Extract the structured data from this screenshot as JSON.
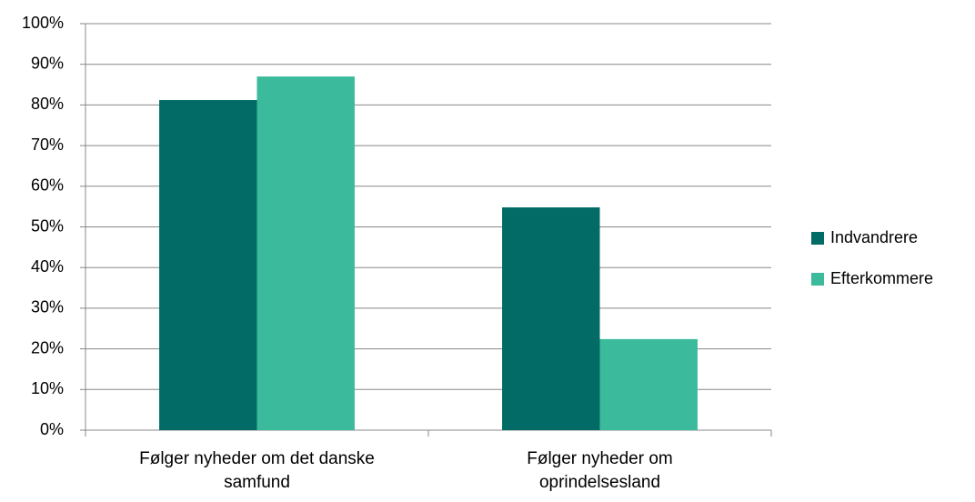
{
  "chart_data": {
    "type": "bar",
    "categories": [
      "Følger nyheder om det danske\nsamfund",
      "Følger nyheder om\noprindelsesland"
    ],
    "series": [
      {
        "name": "Indvandrere",
        "color": "#036b66",
        "values": [
          81.2,
          54.8
        ]
      },
      {
        "name": "Efterkommere",
        "color": "#3bbb9c",
        "values": [
          87.0,
          22.4
        ]
      }
    ],
    "ylim": [
      0,
      100
    ],
    "yticks": [
      {
        "value": 0,
        "label": "0%"
      },
      {
        "value": 10,
        "label": "10%"
      },
      {
        "value": 20,
        "label": "20%"
      },
      {
        "value": 30,
        "label": "30%"
      },
      {
        "value": 40,
        "label": "40%"
      },
      {
        "value": 50,
        "label": "50%"
      },
      {
        "value": 60,
        "label": "60%"
      },
      {
        "value": 70,
        "label": "70%"
      },
      {
        "value": 80,
        "label": "80%"
      },
      {
        "value": 90,
        "label": "90%"
      },
      {
        "value": 100,
        "label": "100%"
      }
    ],
    "grid": true,
    "legend": "right"
  }
}
